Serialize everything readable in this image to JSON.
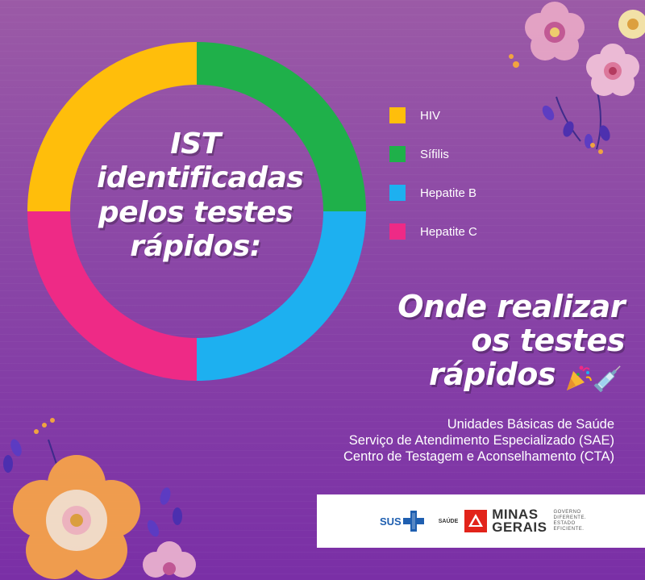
{
  "center_title": "IST identificadas pelos testes rápidos:",
  "chart_data": {
    "type": "pie",
    "categories": [
      "HIV",
      "Sífilis",
      "Hepatite B",
      "Hepatite C"
    ],
    "values": [
      25,
      25,
      25,
      25
    ],
    "colors": [
      "#ffbe0b",
      "#1fb04a",
      "#1db0f0",
      "#ee2a86"
    ]
  },
  "legend": [
    {
      "label": "HIV",
      "color": "#ffbe0b"
    },
    {
      "label": "Sífilis",
      "color": "#1fb04a"
    },
    {
      "label": "Hepatite B",
      "color": "#1db0f0"
    },
    {
      "label": "Hepatite C",
      "color": "#ee2a86"
    }
  ],
  "headline": {
    "line1": "Onde realizar",
    "line2": "os testes",
    "line3": "rápidos"
  },
  "places": [
    "Unidades Básicas de Saúde",
    "Serviço de Atendimento Especializado (SAE)",
    "Centro de Testagem e Aconselhamento (CTA)"
  ],
  "logos": {
    "sus": "SUS",
    "saude": "SAÚDE",
    "minas_line1": "MINAS",
    "minas_line2": "GERAIS",
    "gov_line1": "GOVERNO",
    "gov_line2": "DIFERENTE.",
    "gov_line3": "ESTADO",
    "gov_line4": "EFICIENTE."
  },
  "icons": [
    "party-popper-icon",
    "syringe-icon",
    "sus-cross-icon",
    "minas-gerais-triangle-icon"
  ]
}
